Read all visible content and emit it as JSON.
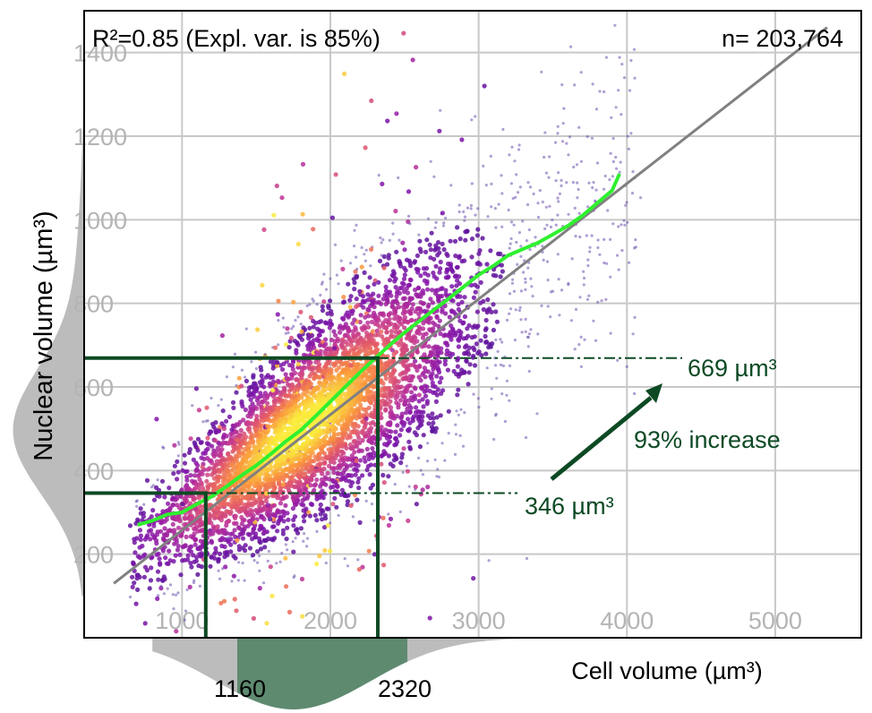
{
  "chart_data": {
    "type": "scatter",
    "title": "",
    "xlabel": "Cell volume (µm³)",
    "ylabel": "Nuclear volume (µm³)",
    "xlim": [
      340,
      5580
    ],
    "ylim": [
      0,
      1500
    ],
    "x_ticks": [
      1000,
      2000,
      3000,
      4000,
      5000
    ],
    "y_ticks": [
      200,
      400,
      600,
      800,
      1000,
      1200,
      1400
    ],
    "grid": true,
    "legend": "none",
    "annotations": {
      "r2_label": "R²=0.85 (Expl. var. is 85%)",
      "n_label": "n= 203,764",
      "low_label": "346 µm³",
      "high_label": "669 µm³",
      "increase_label": "93% increase",
      "cell_low_label": "1160",
      "cell_high_label": "2320"
    },
    "reference_points": {
      "low": {
        "x": 1160,
        "y": 346
      },
      "high": {
        "x": 2320,
        "y": 669
      }
    },
    "regression_line": {
      "x": [
        540,
        5350
      ],
      "y": 130,
      "y_end": 1460
    },
    "binned_mean": {
      "x": [
        700,
        800,
        900,
        1000,
        1100,
        1200,
        1300,
        1400,
        1500,
        1600,
        1700,
        1800,
        1900,
        2000,
        2100,
        2200,
        2300,
        2400,
        2500,
        2600,
        2700,
        2800,
        2900,
        3000,
        3100,
        3200,
        3300,
        3400,
        3500,
        3600,
        3700,
        3800,
        3900,
        3950
      ],
      "y": [
        270,
        280,
        295,
        300,
        320,
        338,
        362,
        388,
        412,
        440,
        470,
        496,
        530,
        565,
        600,
        635,
        668,
        700,
        730,
        758,
        785,
        812,
        840,
        868,
        890,
        915,
        930,
        945,
        965,
        985,
        1010,
        1040,
        1070,
        1110
      ]
    },
    "colors": {
      "grid": "#c8c8c8",
      "tick": "#b4b4b4",
      "regression": "#808080",
      "mean": "#2ff02f",
      "annotation": "#0d4a24",
      "marginal": "#bcbcbc",
      "marginal_highlight": "#5e8a70"
    },
    "density_colormap": "plasma"
  }
}
